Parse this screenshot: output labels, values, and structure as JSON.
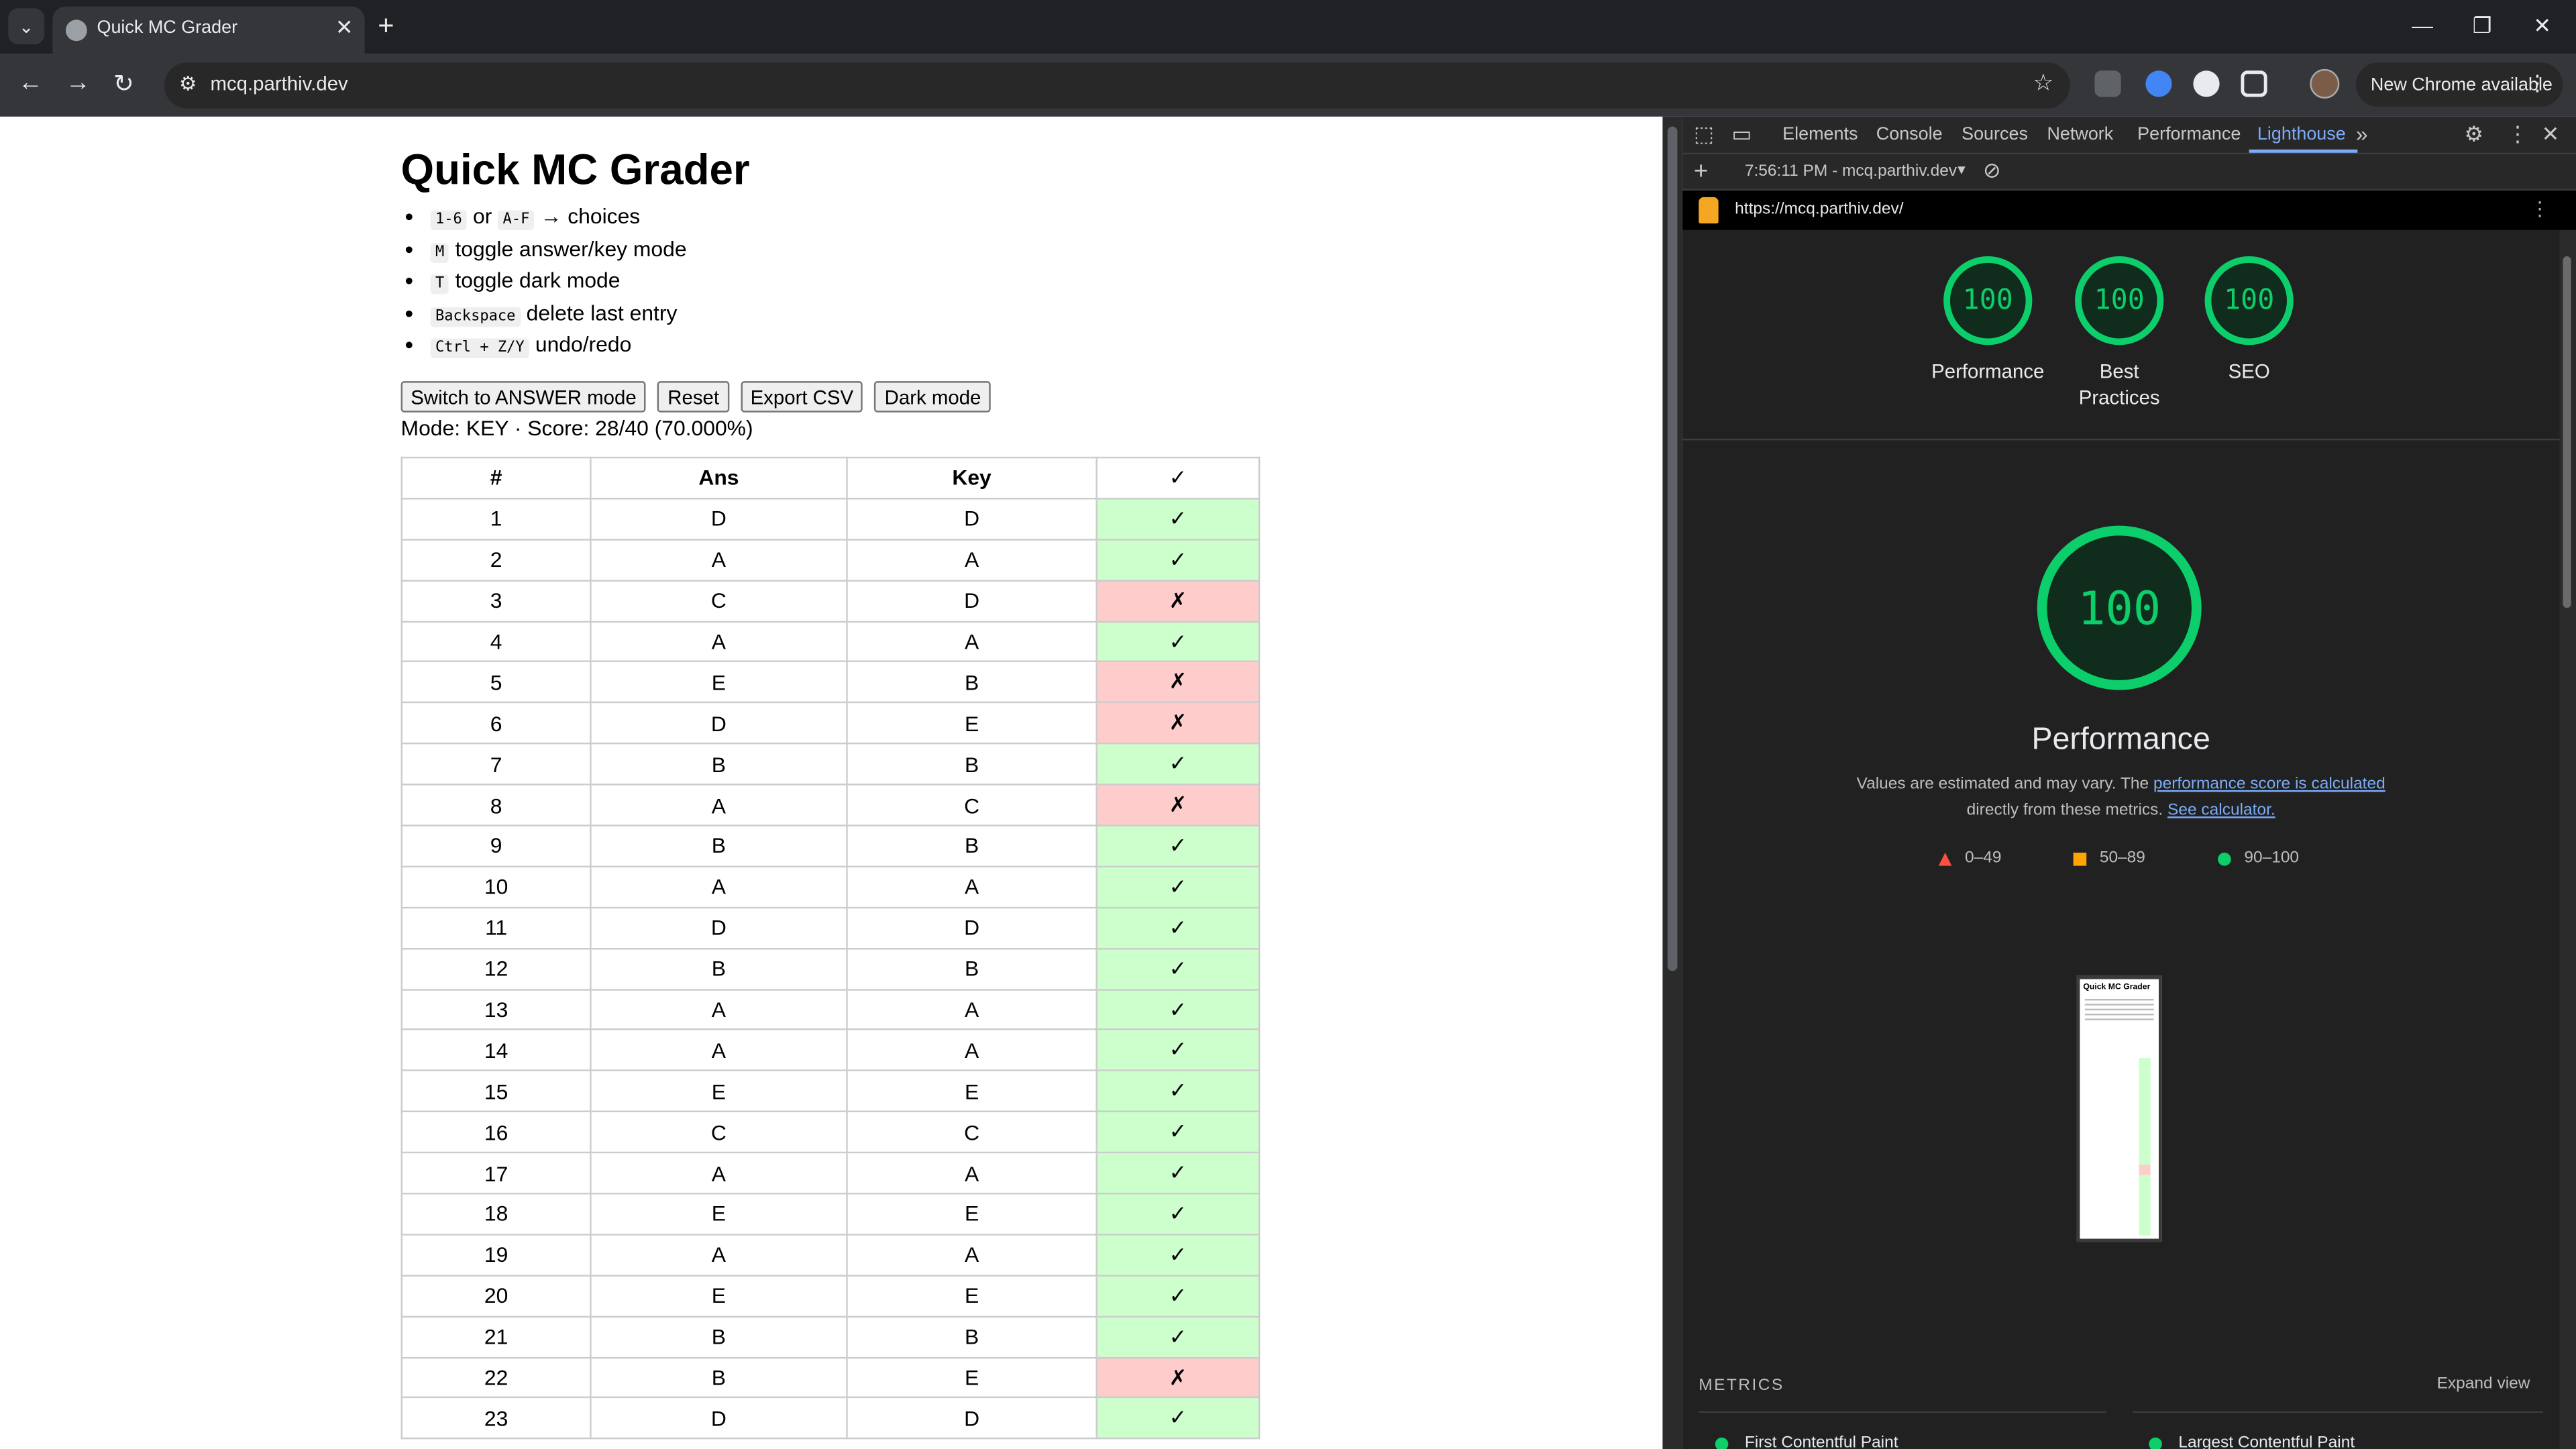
{
  "browser": {
    "tab_title": "Quick MC Grader",
    "url": "mcq.parthiv.dev",
    "update_button": "New Chrome available"
  },
  "page": {
    "title": "Quick MC Grader",
    "help": [
      {
        "code": "1-6",
        "mid": " or ",
        "code2": "A-F",
        "text": " → choices"
      },
      {
        "code": "M",
        "text": " toggle answer/key mode"
      },
      {
        "code": "T",
        "text": " toggle dark mode"
      },
      {
        "code": "Backspace",
        "text": " delete last entry"
      },
      {
        "code": "Ctrl + Z/Y",
        "text": " undo/redo"
      }
    ],
    "buttons": {
      "switch_mode": "Switch to ANSWER mode",
      "reset": "Reset",
      "export_csv": "Export CSV",
      "dark_mode": "Dark mode"
    },
    "status": "Mode: KEY · Score: 28/40 (70.000%)",
    "table": {
      "headers": [
        "#",
        "Ans",
        "Key",
        "✓"
      ],
      "rows": [
        [
          "1",
          "D",
          "D",
          "✓"
        ],
        [
          "2",
          "A",
          "A",
          "✓"
        ],
        [
          "3",
          "C",
          "D",
          "✗"
        ],
        [
          "4",
          "A",
          "A",
          "✓"
        ],
        [
          "5",
          "E",
          "B",
          "✗"
        ],
        [
          "6",
          "D",
          "E",
          "✗"
        ],
        [
          "7",
          "B",
          "B",
          "✓"
        ],
        [
          "8",
          "A",
          "C",
          "✗"
        ],
        [
          "9",
          "B",
          "B",
          "✓"
        ],
        [
          "10",
          "A",
          "A",
          "✓"
        ],
        [
          "11",
          "D",
          "D",
          "✓"
        ],
        [
          "12",
          "B",
          "B",
          "✓"
        ],
        [
          "13",
          "A",
          "A",
          "✓"
        ],
        [
          "14",
          "A",
          "A",
          "✓"
        ],
        [
          "15",
          "E",
          "E",
          "✓"
        ],
        [
          "16",
          "C",
          "C",
          "✓"
        ],
        [
          "17",
          "A",
          "A",
          "✓"
        ],
        [
          "18",
          "E",
          "E",
          "✓"
        ],
        [
          "19",
          "A",
          "A",
          "✓"
        ],
        [
          "20",
          "E",
          "E",
          "✓"
        ],
        [
          "21",
          "B",
          "B",
          "✓"
        ],
        [
          "22",
          "B",
          "E",
          "✗"
        ],
        [
          "23",
          "D",
          "D",
          "✓"
        ]
      ]
    },
    "colors": {
      "correct": "#ccffcc",
      "incorrect": "#ffcccc"
    }
  },
  "devtools": {
    "tabs": [
      "Elements",
      "Console",
      "Sources",
      "Network",
      "Performance",
      "Lighthouse"
    ],
    "active_tab": "Lighthouse",
    "report_selector": "7:56:11 PM - mcq.parthiv.dev",
    "lighthouse_url": "https://mcq.parthiv.dev/",
    "scores": [
      {
        "value": "100",
        "label": "Performance"
      },
      {
        "value": "100",
        "label": "Best Practices"
      },
      {
        "value": "100",
        "label": "SEO"
      }
    ],
    "main_score": "100",
    "main_label": "Performance",
    "desc_prefix": "Values are estimated and may vary. The ",
    "desc_link1": "performance score is calculated",
    "desc_mid": "directly from these metrics. ",
    "desc_link2": "See calculator.",
    "legend": [
      "0–49",
      "50–89",
      "90–100"
    ],
    "metrics_title": "METRICS",
    "expand_view": "Expand view",
    "metrics": [
      "First Contentful Paint",
      "Largest Contentful Paint"
    ],
    "score_color": "#0cce6b"
  }
}
